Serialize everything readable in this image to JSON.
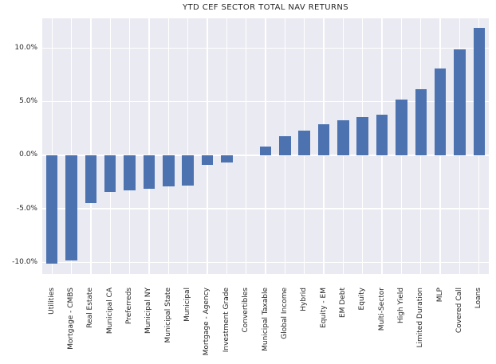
{
  "title": "YTD CEF SECTOR TOTAL NAV RETURNS",
  "chart_data": {
    "type": "bar",
    "title": "YTD CEF SECTOR TOTAL NAV RETURNS",
    "xlabel": "",
    "ylabel": "",
    "grid": true,
    "legend": "none",
    "bar_color": "#4C72B0",
    "plot_background": "#EAEAF2",
    "grid_color": "#FFFFFF",
    "text_color": "#262626",
    "ylim": [
      -11.1,
      12.8
    ],
    "yticks": [
      {
        "value": 10,
        "label": "10.0%"
      },
      {
        "value": 5,
        "label": "5.0%"
      },
      {
        "value": 0,
        "label": "0.0%"
      },
      {
        "value": -5,
        "label": "-5.0%"
      },
      {
        "value": -10,
        "label": "-10.0%"
      }
    ],
    "categories": [
      "Utilities",
      "Mortgage - CMBS",
      "Real Estate",
      "Municipal CA",
      "Preferreds",
      "Municipal NY",
      "Municipal State",
      "Municipal",
      "Mortgage - Agency",
      "Investment Grade",
      "Convertibles",
      "Municipal Taxable",
      "Global Income",
      "Hybrid",
      "Equity - EM",
      "EM Debt",
      "Equity",
      "Multi-Sector",
      "High Yield",
      "Limited Duration",
      "MLP",
      "Covered Call",
      "Loans"
    ],
    "values": [
      -10.1,
      -9.8,
      -4.5,
      -3.4,
      -3.3,
      -3.1,
      -2.9,
      -2.8,
      -0.9,
      -0.7,
      0.0,
      0.8,
      1.8,
      2.3,
      2.9,
      3.3,
      3.6,
      3.8,
      5.2,
      6.2,
      8.1,
      9.9,
      11.9
    ],
    "units": "percent"
  }
}
